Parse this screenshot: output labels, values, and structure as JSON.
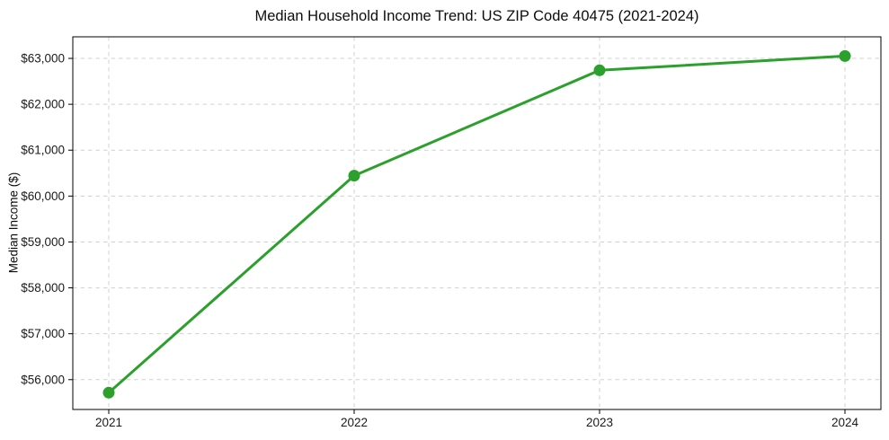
{
  "chart_data": {
    "type": "line",
    "title": "Median Household Income Trend: US ZIP Code 40475 (2021-2024)",
    "xlabel": "",
    "ylabel": "Median Income ($)",
    "x_categories": [
      "2021",
      "2022",
      "2023",
      "2024"
    ],
    "series": [
      {
        "name": "Median Household Income",
        "values": [
          55716,
          60444,
          62740,
          63052
        ],
        "color": "#2ca02c",
        "marker": "circle"
      }
    ],
    "ylim": [
      55350,
      63470
    ],
    "y_ticks": [
      56000,
      57000,
      58000,
      59000,
      60000,
      61000,
      62000,
      63000
    ],
    "y_tick_prefix": "$",
    "grid": "both",
    "grid_style": "dashed",
    "grid_color": "#d0d0d0",
    "axis_color": "#000000",
    "tick_label_color": "#1a1a1a",
    "legend": "none",
    "background": "#ffffff"
  }
}
